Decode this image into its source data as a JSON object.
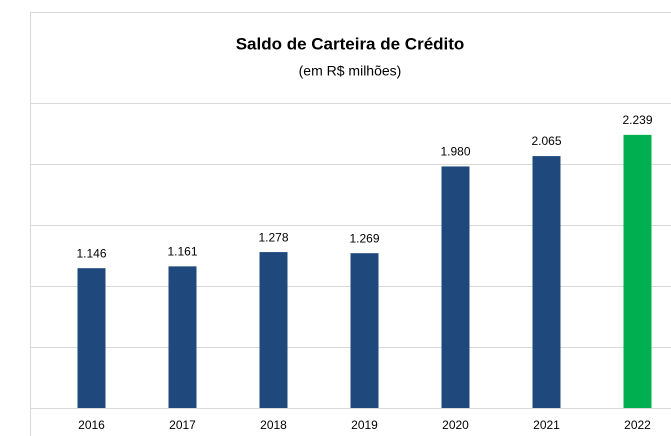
{
  "chart_data": {
    "type": "bar",
    "title": "Saldo de Carteira de Crédito",
    "subtitle": "(em R$ milhões)",
    "categories": [
      "2016",
      "2017",
      "2018",
      "2019",
      "2020",
      "2021",
      "2022"
    ],
    "values": [
      1146,
      1161,
      1278,
      1269,
      1980,
      2065,
      2239
    ],
    "value_labels": [
      "1.146",
      "1.161",
      "1.278",
      "1.269",
      "1.980",
      "2.065",
      "2.239"
    ],
    "colors": [
      "#1f497d",
      "#1f497d",
      "#1f497d",
      "#1f497d",
      "#1f497d",
      "#1f497d",
      "#00b050"
    ],
    "ylim": [
      0,
      2500
    ],
    "yticks": [
      0,
      500,
      1000,
      1500,
      2000,
      2500
    ],
    "grid": true
  }
}
